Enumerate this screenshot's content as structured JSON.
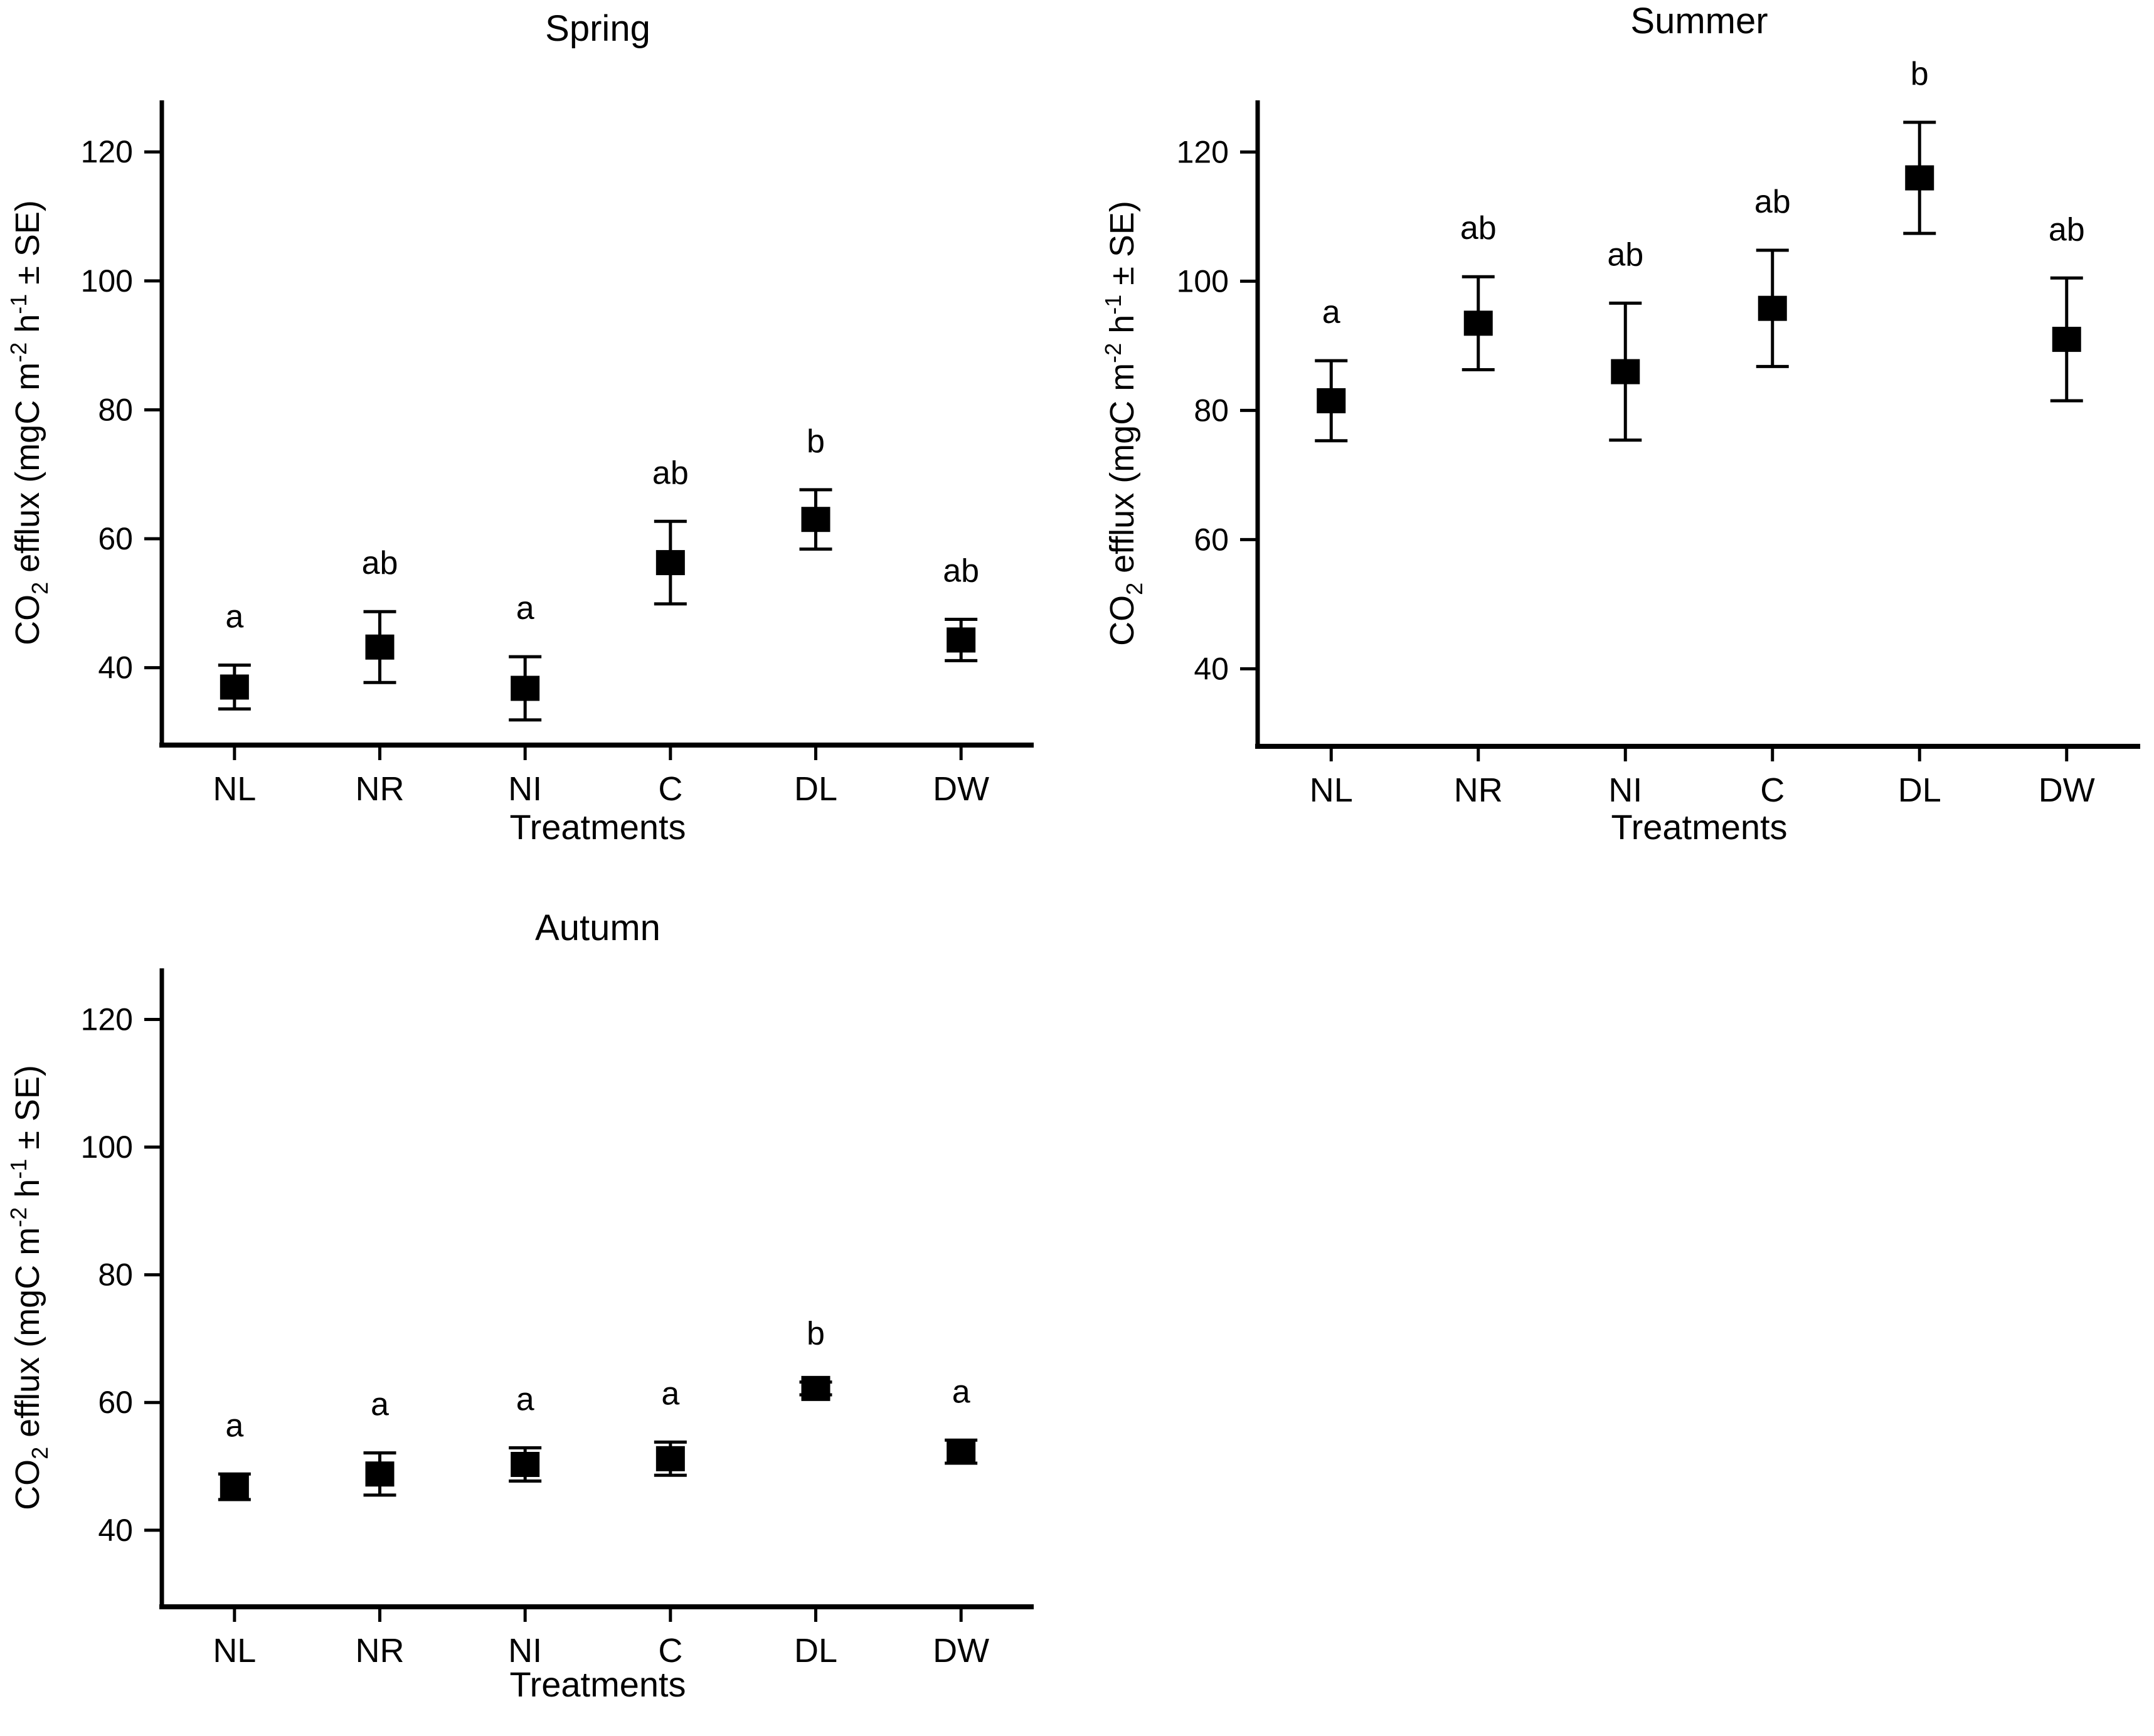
{
  "figure": {
    "background": "#ffffff",
    "ink_color": "#000000",
    "marker_shape": "filled-square",
    "treatment_codes": [
      "NL",
      "NR",
      "NI",
      "C",
      "DL",
      "DW"
    ]
  },
  "chart_data": [
    {
      "type": "scatter",
      "title": "Spring",
      "xlabel": "Treatments",
      "ylabel": "CO2 efflux (mgC m-2 h-1 ± SE)",
      "ylabel_parts": [
        {
          "t": "CO"
        },
        {
          "t": "2",
          "s": "sub"
        },
        {
          "t": " efflux (mgC m"
        },
        {
          "t": "-2",
          "s": "sup"
        },
        {
          "t": " h"
        },
        {
          "t": "-1",
          "s": "sup"
        },
        {
          "t": " ± SE)"
        }
      ],
      "categories": [
        "NL",
        "NR",
        "NI",
        "C",
        "DL",
        "DW"
      ],
      "points": [
        {
          "category": "NL",
          "mean": 37.0,
          "se": 3.4,
          "sig": "a"
        },
        {
          "category": "NR",
          "mean": 43.2,
          "se": 5.5,
          "sig": "ab"
        },
        {
          "category": "NI",
          "mean": 36.8,
          "se": 4.9,
          "sig": "a"
        },
        {
          "category": "C",
          "mean": 56.3,
          "se": 6.4,
          "sig": "ab"
        },
        {
          "category": "DL",
          "mean": 63.0,
          "se": 4.6,
          "sig": "b"
        },
        {
          "category": "DW",
          "mean": 44.3,
          "se": 3.2,
          "sig": "ab"
        }
      ],
      "yticks": [
        40,
        60,
        80,
        100,
        120
      ],
      "ylim": [
        28,
        128
      ],
      "grid": false,
      "legend": "none",
      "color": "#000000"
    },
    {
      "type": "scatter",
      "title": "Summer",
      "xlabel": "Treatments",
      "ylabel": "CO2 efflux (mgC m-2 h-1 ± SE)",
      "ylabel_parts": [
        {
          "t": "CO"
        },
        {
          "t": "2",
          "s": "sub"
        },
        {
          "t": " efflux (mgC m"
        },
        {
          "t": "-2",
          "s": "sup"
        },
        {
          "t": " h"
        },
        {
          "t": "-1",
          "s": "sup"
        },
        {
          "t": " ± SE)"
        }
      ],
      "categories": [
        "NL",
        "NR",
        "NI",
        "C",
        "DL",
        "DW"
      ],
      "points": [
        {
          "category": "NL",
          "mean": 81.5,
          "se": 6.2,
          "sig": "a"
        },
        {
          "category": "NR",
          "mean": 93.5,
          "se": 7.2,
          "sig": "ab"
        },
        {
          "category": "NI",
          "mean": 86.0,
          "se": 10.6,
          "sig": "ab"
        },
        {
          "category": "C",
          "mean": 95.8,
          "se": 9.0,
          "sig": "ab"
        },
        {
          "category": "DL",
          "mean": 116.0,
          "se": 8.6,
          "sig": "b"
        },
        {
          "category": "DW",
          "mean": 91.0,
          "se": 9.5,
          "sig": "ab"
        }
      ],
      "yticks": [
        40,
        60,
        80,
        100,
        120
      ],
      "ylim": [
        28,
        128
      ],
      "grid": false,
      "legend": "none",
      "color": "#000000"
    },
    {
      "type": "scatter",
      "title": "Autumn",
      "xlabel": "Treatments",
      "ylabel": "CO2 efflux (mgC m-2 h-1 ± SE)",
      "ylabel_parts": [
        {
          "t": "CO"
        },
        {
          "t": "2",
          "s": "sub"
        },
        {
          "t": " efflux (mgC m"
        },
        {
          "t": "-2",
          "s": "sup"
        },
        {
          "t": " h"
        },
        {
          "t": "-1",
          "s": "sup"
        },
        {
          "t": " ± SE)"
        }
      ],
      "categories": [
        "NL",
        "NR",
        "NI",
        "C",
        "DL",
        "DW"
      ],
      "points": [
        {
          "category": "NL",
          "mean": 46.8,
          "se": 2.0,
          "sig": "a"
        },
        {
          "category": "NR",
          "mean": 48.8,
          "se": 3.3,
          "sig": "a"
        },
        {
          "category": "NI",
          "mean": 50.3,
          "se": 2.6,
          "sig": "a"
        },
        {
          "category": "C",
          "mean": 51.2,
          "se": 2.6,
          "sig": "a"
        },
        {
          "category": "DL",
          "mean": 62.2,
          "se": 1.0,
          "sig": "b"
        },
        {
          "category": "DW",
          "mean": 52.3,
          "se": 1.8,
          "sig": "a"
        }
      ],
      "yticks": [
        40,
        60,
        80,
        100,
        120
      ],
      "ylim": [
        28,
        128
      ],
      "grid": false,
      "legend": "none",
      "color": "#000000"
    }
  ]
}
